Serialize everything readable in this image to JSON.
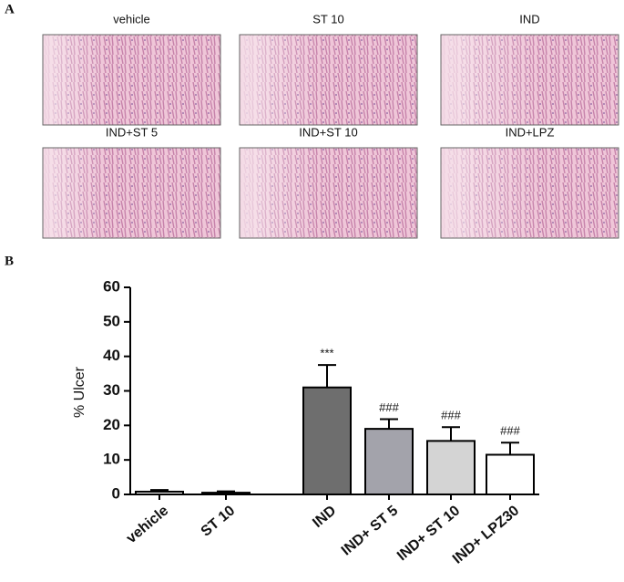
{
  "panel_a": {
    "label": "A",
    "captions": [
      "vehicle",
      "ST 10",
      "IND",
      "IND+ST 5",
      "IND+ST 10",
      "IND+LPZ"
    ]
  },
  "panel_b_label": "B",
  "chart_data": {
    "type": "bar",
    "y_label": "% Ulcer",
    "categories": [
      "vehicle",
      "ST 10",
      "IND",
      "IND+ ST 5",
      "IND+ ST 10",
      "IND+  LPZ30"
    ],
    "values": [
      0.8,
      0.5,
      31,
      19,
      15.5,
      11.5
    ],
    "errors": [
      0.5,
      0.4,
      6.5,
      2.8,
      4,
      3.5
    ],
    "colors": [
      "#ffffff",
      "#ffffff",
      "#6e6e6e",
      "#a3a3ab",
      "#d4d4d4",
      "#ffffff"
    ],
    "annotations": [
      null,
      null,
      "***",
      "###",
      "###",
      "###"
    ],
    "ylim": [
      0,
      60
    ],
    "yticks": [
      0,
      10,
      20,
      30,
      40,
      50,
      60
    ]
  }
}
